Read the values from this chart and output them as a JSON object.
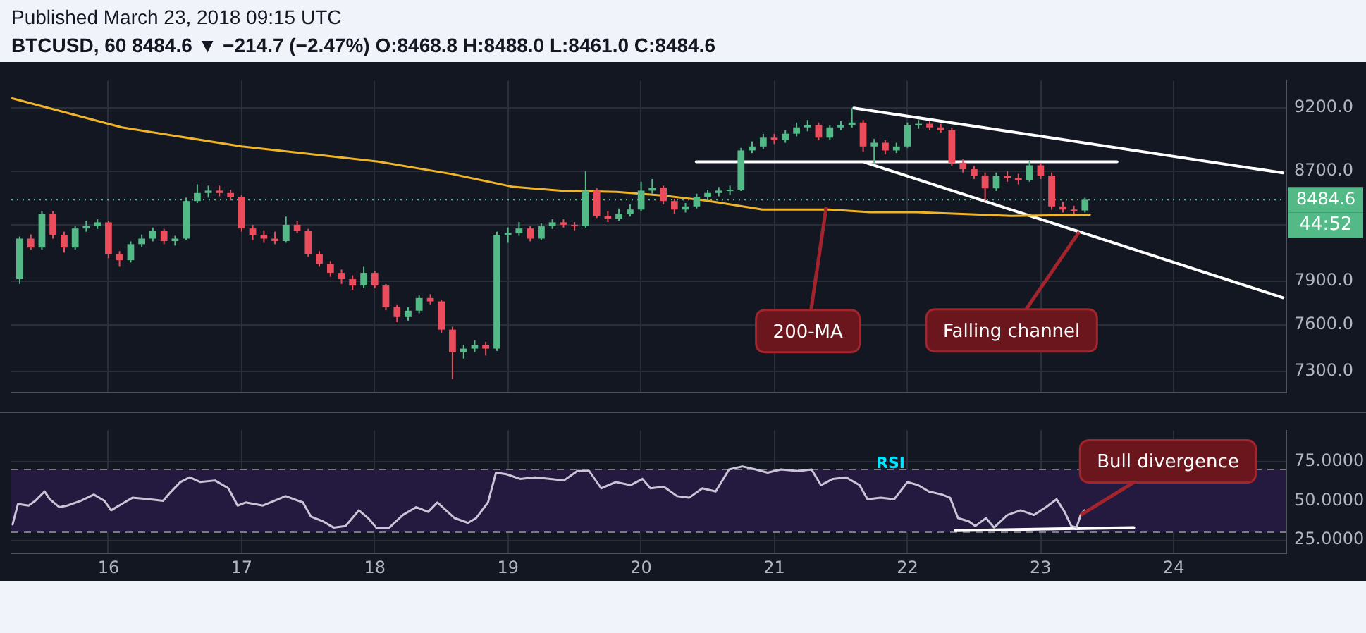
{
  "chart_data": [
    {
      "type": "candlestick",
      "title": "Published March 23, 2018 09:15 UTC",
      "subtitle": "BTCUSD, 60  8484.6 ▼ −214.7 (−2.47%) O:8468.8 H:8488.0 L:8461.0 C:8484.6",
      "x": [
        15.333,
        15.417,
        15.5,
        15.583,
        15.667,
        15.75,
        15.833,
        15.917,
        16,
        16.083,
        16.167,
        16.25,
        16.333,
        16.417,
        16.5,
        16.583,
        16.667,
        16.75,
        16.833,
        16.917,
        17,
        17.083,
        17.167,
        17.25,
        17.333,
        17.417,
        17.5,
        17.583,
        17.667,
        17.75,
        17.833,
        17.917,
        18,
        18.083,
        18.167,
        18.25,
        18.333,
        18.417,
        18.5,
        18.583,
        18.667,
        18.75,
        18.833,
        18.917,
        19,
        19.083,
        19.167,
        19.25,
        19.333,
        19.417,
        19.5,
        19.583,
        19.667,
        19.75,
        19.833,
        19.917,
        20,
        20.083,
        20.167,
        20.25,
        20.333,
        20.417,
        20.5,
        20.583,
        20.667,
        20.75,
        20.833,
        20.917,
        21,
        21.083,
        21.167,
        21.25,
        21.333,
        21.417,
        21.5,
        21.583,
        21.667,
        21.75,
        21.833,
        21.917,
        22,
        22.083,
        22.167,
        22.25,
        22.333,
        22.417,
        22.5,
        22.583,
        22.667,
        22.75,
        22.833,
        22.917,
        23,
        23.083,
        23.167,
        23.25,
        23.333
      ],
      "ohlc": [
        [
          7913,
          8215,
          7880,
          8200
        ],
        [
          8200,
          8230,
          8120,
          8136
        ],
        [
          8136,
          8402,
          8120,
          8380
        ],
        [
          8380,
          8400,
          8200,
          8227
        ],
        [
          8227,
          8250,
          8100,
          8136
        ],
        [
          8136,
          8290,
          8120,
          8273
        ],
        [
          8273,
          8330,
          8250,
          8290
        ],
        [
          8290,
          8340,
          8270,
          8318
        ],
        [
          8318,
          8330,
          8060,
          8091
        ],
        [
          8091,
          8110,
          8000,
          8046
        ],
        [
          8046,
          8180,
          8030,
          8160
        ],
        [
          8160,
          8230,
          8140,
          8200
        ],
        [
          8200,
          8280,
          8180,
          8255
        ],
        [
          8255,
          8270,
          8160,
          8182
        ],
        [
          8182,
          8220,
          8150,
          8200
        ],
        [
          8200,
          8500,
          8190,
          8475
        ],
        [
          8475,
          8600,
          8460,
          8535
        ],
        [
          8535,
          8590,
          8500,
          8553
        ],
        [
          8553,
          8590,
          8510,
          8535
        ],
        [
          8535,
          8560,
          8480,
          8505
        ],
        [
          8505,
          8520,
          8250,
          8273
        ],
        [
          8273,
          8300,
          8190,
          8227
        ],
        [
          8227,
          8260,
          8170,
          8200
        ],
        [
          8200,
          8250,
          8160,
          8182
        ],
        [
          8182,
          8360,
          8170,
          8300
        ],
        [
          8300,
          8330,
          8240,
          8255
        ],
        [
          8255,
          8270,
          8070,
          8091
        ],
        [
          8091,
          8110,
          8000,
          8020
        ],
        [
          8020,
          8040,
          7930,
          7957
        ],
        [
          7957,
          7980,
          7880,
          7913
        ],
        [
          7913,
          7940,
          7840,
          7869
        ],
        [
          7869,
          8000,
          7850,
          7957
        ],
        [
          7957,
          7970,
          7850,
          7869
        ],
        [
          7869,
          7880,
          7700,
          7720
        ],
        [
          7720,
          7740,
          7620,
          7654
        ],
        [
          7654,
          7720,
          7630,
          7697
        ],
        [
          7697,
          7800,
          7680,
          7783
        ],
        [
          7783,
          7810,
          7740,
          7760
        ],
        [
          7760,
          7770,
          7550,
          7570
        ],
        [
          7570,
          7590,
          7249,
          7420
        ],
        [
          7420,
          7470,
          7380,
          7445
        ],
        [
          7445,
          7500,
          7420,
          7470
        ],
        [
          7470,
          7490,
          7400,
          7445
        ],
        [
          7445,
          8250,
          7430,
          8227
        ],
        [
          8227,
          8280,
          8170,
          8240
        ],
        [
          8240,
          8320,
          8220,
          8273
        ],
        [
          8273,
          8290,
          8180,
          8200
        ],
        [
          8200,
          8310,
          8190,
          8290
        ],
        [
          8290,
          8340,
          8270,
          8318
        ],
        [
          8318,
          8340,
          8280,
          8300
        ],
        [
          8300,
          8320,
          8260,
          8290
        ],
        [
          8290,
          8700,
          8280,
          8553
        ],
        [
          8553,
          8570,
          8350,
          8365
        ],
        [
          8365,
          8400,
          8320,
          8345
        ],
        [
          8345,
          8420,
          8330,
          8380
        ],
        [
          8380,
          8450,
          8360,
          8412
        ],
        [
          8412,
          8620,
          8400,
          8553
        ],
        [
          8553,
          8640,
          8530,
          8575
        ],
        [
          8575,
          8590,
          8450,
          8475
        ],
        [
          8475,
          8490,
          8380,
          8412
        ],
        [
          8412,
          8460,
          8390,
          8435
        ],
        [
          8435,
          8530,
          8420,
          8505
        ],
        [
          8505,
          8560,
          8480,
          8535
        ],
        [
          8535,
          8580,
          8510,
          8553
        ],
        [
          8553,
          8590,
          8520,
          8560
        ],
        [
          8560,
          8880,
          8550,
          8860
        ],
        [
          8860,
          8930,
          8840,
          8891
        ],
        [
          8891,
          8990,
          8870,
          8960
        ],
        [
          8960,
          8990,
          8910,
          8941
        ],
        [
          8941,
          9020,
          8920,
          8991
        ],
        [
          8991,
          9080,
          8970,
          9041
        ],
        [
          9041,
          9100,
          9010,
          9060
        ],
        [
          9060,
          9080,
          8940,
          8960
        ],
        [
          8960,
          9060,
          8940,
          9041
        ],
        [
          9041,
          9090,
          9020,
          9060
        ],
        [
          9060,
          9196,
          9040,
          9080
        ],
        [
          9080,
          9100,
          8850,
          8891
        ],
        [
          8891,
          8950,
          8760,
          8920
        ],
        [
          8920,
          8940,
          8830,
          8860
        ],
        [
          8860,
          8920,
          8840,
          8891
        ],
        [
          8891,
          9080,
          8880,
          9060
        ],
        [
          9060,
          9100,
          9030,
          9070
        ],
        [
          9070,
          9090,
          9020,
          9041
        ],
        [
          9041,
          9070,
          9000,
          9020
        ],
        [
          9020,
          9040,
          8740,
          8765
        ],
        [
          8765,
          8790,
          8690,
          8715
        ],
        [
          8715,
          8740,
          8640,
          8667
        ],
        [
          8667,
          8690,
          8475,
          8570
        ],
        [
          8570,
          8690,
          8550,
          8667
        ],
        [
          8667,
          8700,
          8620,
          8648
        ],
        [
          8648,
          8680,
          8600,
          8630
        ],
        [
          8630,
          8780,
          8620,
          8745
        ],
        [
          8745,
          8760,
          8640,
          8667
        ],
        [
          8667,
          8690,
          8410,
          8435
        ],
        [
          8435,
          8470,
          8390,
          8412
        ],
        [
          8412,
          8440,
          8380,
          8405
        ],
        [
          8405,
          8500,
          8390,
          8484.6
        ]
      ],
      "colors": [
        "#53b987",
        "#eb4d5c",
        "#53b987",
        "#eb4d5c",
        "#eb4d5c",
        "#53b987",
        "#53b987",
        "#53b987",
        "#eb4d5c",
        "#eb4d5c",
        "#53b987",
        "#53b987",
        "#53b987",
        "#eb4d5c",
        "#53b987",
        "#53b987",
        "#53b987",
        "#53b987",
        "#eb4d5c",
        "#eb4d5c",
        "#eb4d5c",
        "#eb4d5c",
        "#eb4d5c",
        "#eb4d5c",
        "#53b987",
        "#eb4d5c",
        "#eb4d5c",
        "#eb4d5c",
        "#eb4d5c",
        "#eb4d5c",
        "#eb4d5c",
        "#53b987",
        "#eb4d5c",
        "#eb4d5c",
        "#eb4d5c",
        "#53b987",
        "#53b987",
        "#eb4d5c",
        "#eb4d5c",
        "#eb4d5c",
        "#53b987",
        "#53b987",
        "#eb4d5c",
        "#53b987",
        "#53b987",
        "#53b987",
        "#eb4d5c",
        "#53b987",
        "#53b987",
        "#eb4d5c",
        "#eb4d5c",
        "#53b987",
        "#eb4d5c",
        "#eb4d5c",
        "#53b987",
        "#53b987",
        "#53b987",
        "#53b987",
        "#eb4d5c",
        "#eb4d5c",
        "#53b987",
        "#53b987",
        "#53b987",
        "#53b987",
        "#53b987",
        "#53b987",
        "#53b987",
        "#53b987",
        "#eb4d5c",
        "#53b987",
        "#53b987",
        "#53b987",
        "#eb4d5c",
        "#53b987",
        "#53b987",
        "#53b987",
        "#eb4d5c",
        "#53b987",
        "#eb4d5c",
        "#53b987",
        "#53b987",
        "#53b987",
        "#eb4d5c",
        "#eb4d5c",
        "#eb4d5c",
        "#eb4d5c",
        "#eb4d5c",
        "#eb4d5c",
        "#53b987",
        "#eb4d5c",
        "#eb4d5c",
        "#53b987",
        "#eb4d5c",
        "#eb4d5c",
        "#eb4d5c",
        "#eb4d5c",
        "#53b987"
      ],
      "series": [
        {
          "type": "line",
          "color": "#f0b429",
          "x": [
            15.277,
            16.101,
            17.0,
            18.025,
            18.586,
            19.04,
            19.4,
            19.82,
            20.17,
            20.49,
            20.91,
            21.41,
            21.72,
            22.07,
            22.78,
            23.37
          ],
          "values": [
            9275,
            9041,
            8891,
            8774,
            8677,
            8581,
            8553,
            8543,
            8515,
            8478,
            8412,
            8412,
            8393,
            8393,
            8365,
            8374
          ]
        },
        {
          "type": "line",
          "color": "#ffffff",
          "x": [
            21.597,
            24.82
          ],
          "values": [
            9196,
            8687
          ]
        },
        {
          "type": "line",
          "color": "#ffffff",
          "x": [
            21.68,
            24.82
          ],
          "values": [
            8768,
            7785
          ]
        },
        {
          "type": "line",
          "color": "#ffffff",
          "x": [
            20.414,
            23.574
          ],
          "values": [
            8772,
            8772
          ]
        }
      ],
      "xlim": [
        15.27,
        24.84
      ],
      "xticks": [
        16,
        17,
        18,
        19,
        20,
        21,
        22,
        23,
        24
      ],
      "ylim": [
        7160,
        9420
      ],
      "yticks": [
        {
          "value": 9200,
          "label": "9200.0"
        },
        {
          "value": 8700,
          "label": "8700.0"
        },
        {
          "value": 8300,
          "label": null
        },
        {
          "value": 7900,
          "label": "7900.0"
        },
        {
          "value": 7600,
          "label": "7600.0"
        },
        {
          "value": 7300,
          "label": "7300.0"
        }
      ],
      "log": true,
      "grid": true,
      "tick_labels": "y",
      "ref_lines": [
        {
          "axis": "y",
          "value": 8484.6,
          "label": "8484.6",
          "color": "#53b987",
          "line_style": "dotted"
        }
      ],
      "annotations": [
        {
          "text": "200-MA",
          "x": 21.39,
          "y": 8430
        },
        {
          "text": "Falling channel",
          "x": 23.29,
          "y": 8249
        },
        "44:52"
      ]
    },
    {
      "type": "line",
      "title": "RSI",
      "series": [
        {
          "type": "line",
          "color": "#c9c4d6",
          "x": [
            15.28,
            15.32,
            15.4,
            15.45,
            15.52,
            15.56,
            15.63,
            15.69,
            15.79,
            15.89,
            15.97,
            16.02,
            16.12,
            16.18,
            16.31,
            16.41,
            16.46,
            16.54,
            16.61,
            16.69,
            16.8,
            16.9,
            16.97,
            17.03,
            17.16,
            17.33,
            17.46,
            17.52,
            17.61,
            17.69,
            17.78,
            17.88,
            17.95,
            18.01,
            18.11,
            18.21,
            18.31,
            18.4,
            18.47,
            18.6,
            18.7,
            18.76,
            18.85,
            18.91,
            18.99,
            19.09,
            19.2,
            19.32,
            19.42,
            19.52,
            19.61,
            19.7,
            19.81,
            19.92,
            20.01,
            20.07,
            20.17,
            20.27,
            20.36,
            20.46,
            20.56,
            20.66,
            20.76,
            20.86,
            20.95,
            21.05,
            21.18,
            21.28,
            21.35,
            21.44,
            21.54,
            21.64,
            21.7,
            21.8,
            21.9,
            22.0,
            22.08,
            22.16,
            22.26,
            22.32,
            22.38,
            22.46,
            22.51,
            22.59,
            22.65,
            22.75,
            22.85,
            22.95,
            23.04,
            23.12,
            23.18,
            23.23,
            23.27,
            23.3,
            23.33
          ],
          "values": [
            35,
            48,
            47,
            50,
            56,
            51,
            46,
            47,
            50,
            54,
            50,
            44,
            49,
            52,
            51,
            50,
            55,
            62,
            65,
            62,
            63,
            58,
            47,
            49,
            47,
            53,
            49,
            40,
            37,
            33,
            34,
            44,
            39,
            33,
            33,
            41,
            46,
            43,
            49,
            39,
            36,
            39,
            49,
            68,
            67,
            64,
            65,
            64,
            63,
            69,
            69,
            58,
            62,
            60,
            64,
            58,
            59,
            53,
            52,
            58,
            56,
            70,
            72,
            70,
            68,
            70,
            69,
            70,
            60,
            64,
            65,
            60,
            51,
            52,
            51,
            62,
            60,
            56,
            54,
            52,
            39,
            37,
            34,
            39,
            33,
            41,
            44,
            41,
            46,
            51,
            43,
            34,
            33,
            41,
            44
          ]
        },
        {
          "type": "line",
          "color": "#ffffff",
          "x": [
            22.357,
            23.7
          ],
          "values": [
            31,
            33
          ]
        }
      ],
      "xlim": [
        15.27,
        24.84
      ],
      "xticks": [
        16,
        17,
        18,
        19,
        20,
        21,
        22,
        23,
        24
      ],
      "ylim": [
        17,
        95
      ],
      "yticks": [
        {
          "value": 75,
          "label": "75.0000"
        },
        {
          "value": 50,
          "label": "50.0000"
        },
        {
          "value": 25,
          "label": "25.0000"
        }
      ],
      "grid": true,
      "ref_lines": [
        {
          "axis": "y",
          "value": 70,
          "label": null,
          "color": "#787b86",
          "line_style": "dashed"
        },
        {
          "axis": "y",
          "value": 30,
          "label": null,
          "color": "#787b86",
          "line_style": "dashed"
        }
      ],
      "bands": [
        {
          "axis": "y",
          "from": 30,
          "to": 70,
          "color": "#241a3f"
        }
      ],
      "annotations": [
        {
          "text": "Bull divergence",
          "x": 23.3,
          "y": 41
        }
      ]
    }
  ]
}
